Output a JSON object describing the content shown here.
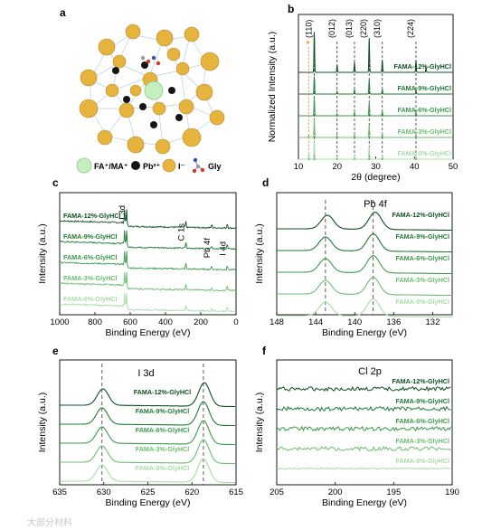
{
  "palette": {
    "p12": "#0d4f22",
    "p9": "#1f7a33",
    "p6": "#3b9a4a",
    "p3": "#6dbd72",
    "p0": "#a8dca8",
    "iodide": "#e6b43c",
    "pb": "#151515",
    "fama": "#c6efc0",
    "cage": "#9cc9d8"
  },
  "legend_a": {
    "fa": "FA⁺/MA⁺",
    "pb": "Pb²⁺",
    "i": "I⁻",
    "gly": "Gly"
  },
  "watermark": "大部分材料",
  "chart_data": [
    {
      "panel": "a",
      "type": "diagram",
      "label": "a"
    },
    {
      "panel": "b",
      "type": "line",
      "label": "b",
      "xlabel": "2θ (degree)",
      "ylabel": "Normalized Intensity (a.u.)",
      "xlim": [
        10,
        50
      ],
      "xticks": [
        10,
        20,
        30,
        40,
        50
      ],
      "reflections": [
        {
          "label": "(110)",
          "x": 14.1
        },
        {
          "label": "(012)",
          "x": 20.0
        },
        {
          "label": "(013)",
          "x": 24.5
        },
        {
          "label": "(220)",
          "x": 28.3
        },
        {
          "label": "(310)",
          "x": 31.7
        },
        {
          "label": "(224)",
          "x": 40.4
        }
      ],
      "star": {
        "label": "*",
        "x": 12.7
      },
      "series": [
        {
          "name": "FAMA-12%-GlyHCl",
          "color": "#0d4f22",
          "peaks": [
            [
              14.1,
              1.0
            ],
            [
              20.0,
              0.18
            ],
            [
              24.5,
              0.25
            ],
            [
              28.3,
              0.85
            ],
            [
              31.7,
              0.3
            ],
            [
              40.4,
              0.3
            ],
            [
              43.0,
              0.12
            ]
          ]
        },
        {
          "name": "FAMA-9%-GlyHCl",
          "color": "#1f7a33",
          "peaks": [
            [
              14.1,
              1.0
            ],
            [
              20.0,
              0.15
            ],
            [
              24.5,
              0.25
            ],
            [
              28.3,
              0.8
            ],
            [
              31.7,
              0.28
            ],
            [
              40.4,
              0.25
            ]
          ]
        },
        {
          "name": "FAMA-6%-GlyHCl",
          "color": "#3b9a4a",
          "peaks": [
            [
              14.1,
              1.0
            ],
            [
              20.0,
              0.12
            ],
            [
              24.5,
              0.2
            ],
            [
              28.3,
              0.75
            ],
            [
              31.7,
              0.25
            ],
            [
              40.4,
              0.2
            ]
          ]
        },
        {
          "name": "FAMA-3%-GlyHCl",
          "color": "#6dbd72",
          "peaks": [
            [
              12.7,
              0.12
            ],
            [
              14.1,
              1.0
            ],
            [
              20.0,
              0.12
            ],
            [
              24.5,
              0.18
            ],
            [
              28.3,
              0.7
            ],
            [
              31.7,
              0.22
            ],
            [
              40.4,
              0.18
            ]
          ]
        },
        {
          "name": "FAMA-0%-GlyHCl",
          "color": "#a8dca8",
          "peaks": [
            [
              12.7,
              0.35
            ],
            [
              14.1,
              1.0
            ],
            [
              20.0,
              0.12
            ],
            [
              24.5,
              0.18
            ],
            [
              28.3,
              0.7
            ],
            [
              31.7,
              0.22
            ],
            [
              40.4,
              0.18
            ]
          ]
        }
      ]
    },
    {
      "panel": "c",
      "type": "line",
      "label": "c",
      "xlabel": "Binding Energy (eV)",
      "ylabel": "Intensity (a.u.)",
      "xlim": [
        1000,
        0
      ],
      "xticks": [
        1000,
        800,
        600,
        400,
        200,
        0
      ],
      "annotations": [
        {
          "label": "I 3d",
          "x": 620
        },
        {
          "label": "C 1s",
          "x": 285
        },
        {
          "label": "Pb 4f",
          "x": 138
        },
        {
          "label": "I 4d",
          "x": 50
        }
      ],
      "series": [
        {
          "name": "FAMA-12%-GlyHCl",
          "color": "#0d4f22"
        },
        {
          "name": "FAMA-9%-GlyHCl",
          "color": "#1f7a33"
        },
        {
          "name": "FAMA-6%-GlyHCl",
          "color": "#3b9a4a"
        },
        {
          "name": "FAMA-3%-GlyHCl",
          "color": "#6dbd72"
        },
        {
          "name": "FAMA-0%-GlyHCl",
          "color": "#a8dca8"
        }
      ]
    },
    {
      "panel": "d",
      "type": "line",
      "label": "d",
      "title": "Pb 4f",
      "xlabel": "Binding Energy (eV)",
      "ylabel": "Intensity (a.u.)",
      "xlim": [
        148,
        130
      ],
      "xticks": [
        148,
        144,
        140,
        136,
        132
      ],
      "ref_lines": [
        143.0,
        138.1
      ],
      "series": [
        {
          "name": "FAMA-12%-GlyHCl",
          "color": "#0d4f22",
          "peaks": [
            142.8,
            137.9
          ]
        },
        {
          "name": "FAMA-9%-GlyHCl",
          "color": "#1f7a33",
          "peaks": [
            143.0,
            138.1
          ]
        },
        {
          "name": "FAMA-6%-GlyHCl",
          "color": "#3b9a4a",
          "peaks": [
            143.0,
            138.1
          ]
        },
        {
          "name": "FAMA-3%-GlyHCl",
          "color": "#6dbd72",
          "peaks": [
            143.0,
            138.1
          ]
        },
        {
          "name": "FAMA-0%-GlyHCl",
          "color": "#a8dca8",
          "peaks": [
            143.0,
            138.1
          ]
        }
      ]
    },
    {
      "panel": "e",
      "type": "line",
      "label": "e",
      "title": "I 3d",
      "xlabel": "Binding Energy (eV)",
      "ylabel": "Intensity (a.u.)",
      "xlim": [
        635,
        615
      ],
      "xticks": [
        635,
        630,
        625,
        620,
        615
      ],
      "ref_lines": [
        630.2,
        618.7
      ],
      "series": [
        {
          "name": "FAMA-12%-GlyHCl",
          "color": "#0d4f22",
          "peaks": [
            630.1,
            618.6
          ]
        },
        {
          "name": "FAMA-9%-GlyHCl",
          "color": "#1f7a33",
          "peaks": [
            630.2,
            618.7
          ]
        },
        {
          "name": "FAMA-6%-GlyHCl",
          "color": "#3b9a4a",
          "peaks": [
            630.2,
            618.7
          ]
        },
        {
          "name": "FAMA-3%-GlyHCl",
          "color": "#6dbd72",
          "peaks": [
            630.2,
            618.7
          ]
        },
        {
          "name": "FAMA-0%-GlyHCl",
          "color": "#a8dca8",
          "peaks": [
            630.2,
            618.7
          ]
        }
      ]
    },
    {
      "panel": "f",
      "type": "line",
      "label": "f",
      "title": "Cl 2p",
      "xlabel": "Binding Energy (eV)",
      "ylabel": "Intensity (a.u.)",
      "xlim": [
        205,
        190
      ],
      "xticks": [
        205,
        200,
        195,
        190
      ],
      "series": [
        {
          "name": "FAMA-12%-GlyHCl",
          "color": "#0d4f22"
        },
        {
          "name": "FAMA-9%-GlyHCl",
          "color": "#1f7a33"
        },
        {
          "name": "FAMA-6%-GlyHCl",
          "color": "#3b9a4a"
        },
        {
          "name": "FAMA-3%-GlyHCl",
          "color": "#6dbd72"
        },
        {
          "name": "FAMA-0%-GlyHCl",
          "color": "#a8dca8"
        }
      ]
    }
  ]
}
